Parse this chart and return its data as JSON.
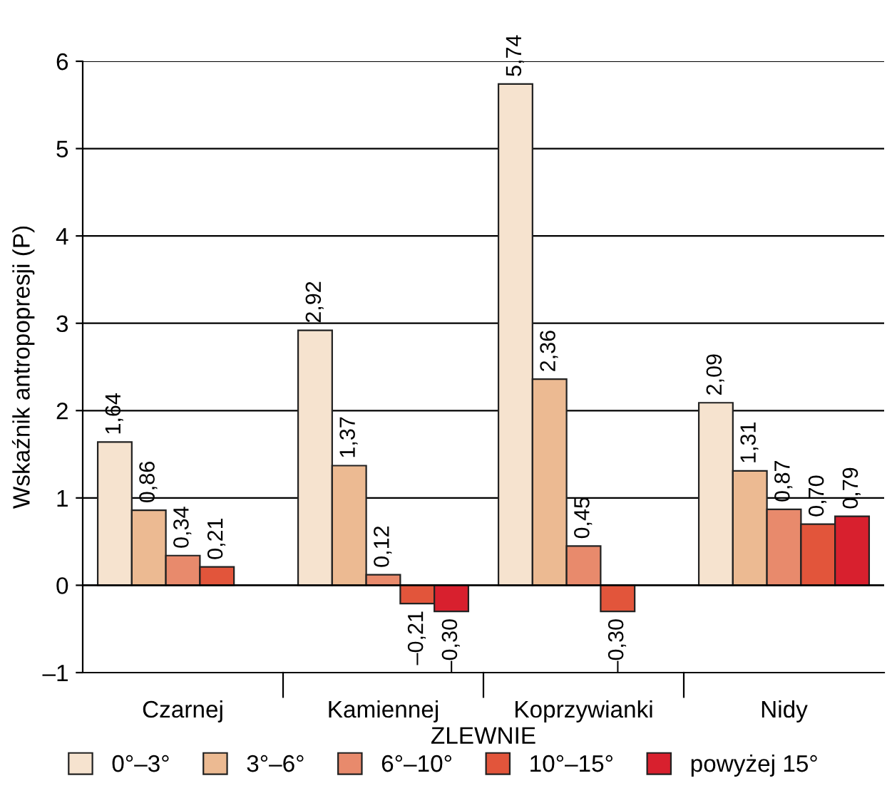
{
  "chart_data": {
    "type": "bar",
    "ylabel": "Wskaźnik antropopresji (P)",
    "xlabel": "ZLEWNIE",
    "categories": [
      "Czarnej",
      "Kamiennej",
      "Koprzywianki",
      "Nidy"
    ],
    "series": [
      {
        "name": "0°–3°",
        "color": "#f6e3cf",
        "values": [
          1.64,
          2.92,
          5.74,
          2.09
        ],
        "value_labels": [
          "1,64",
          "2,92",
          "5,74",
          "2,09"
        ]
      },
      {
        "name": "3°–6°",
        "color": "#ecba92",
        "values": [
          0.86,
          1.37,
          2.36,
          1.31
        ],
        "value_labels": [
          "0,86",
          "1,37",
          "2,36",
          "1,31"
        ]
      },
      {
        "name": "6°–10°",
        "color": "#e88a6c",
        "values": [
          0.34,
          0.12,
          0.45,
          0.87
        ],
        "value_labels": [
          "0,34",
          "0,12",
          "0,45",
          "0,87"
        ]
      },
      {
        "name": "10°–15°",
        "color": "#e2553b",
        "values": [
          0.21,
          -0.21,
          -0.3,
          0.7
        ],
        "value_labels": [
          "0,21",
          "–0,21",
          "–0,30",
          "0,70"
        ]
      },
      {
        "name": "powyżej 15°",
        "color": "#d8202e",
        "values": [
          null,
          -0.3,
          null,
          0.79
        ],
        "value_labels": [
          null,
          "–0,30",
          null,
          "0,79"
        ]
      }
    ],
    "ylim": [
      -1,
      6
    ],
    "yticks": [
      {
        "value": -1,
        "label": "–1"
      },
      0,
      1,
      2,
      3,
      4,
      5,
      6
    ],
    "grid": "y",
    "legend": "bottom"
  }
}
